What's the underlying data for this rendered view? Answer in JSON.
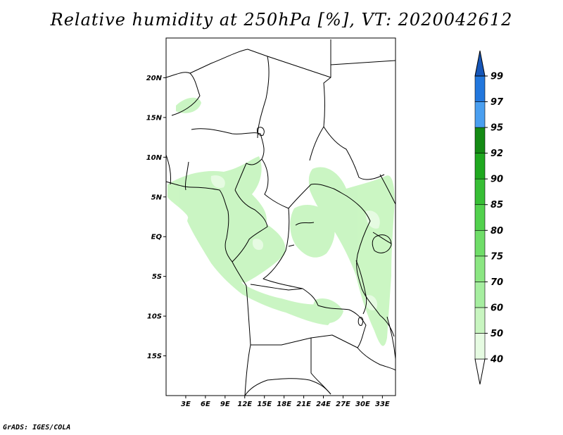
{
  "title": "Relative humidity at 250hPa [%], VT: 2020042612",
  "credit": "GrADS: IGES/COLA",
  "map": {
    "lon_range": [
      0,
      35
    ],
    "lat_range": [
      -20,
      25
    ],
    "lat_labels": [
      {
        "lat": 20,
        "text": "20N"
      },
      {
        "lat": 15,
        "text": "15N"
      },
      {
        "lat": 10,
        "text": "10N"
      },
      {
        "lat": 5,
        "text": "5N"
      },
      {
        "lat": 0,
        "text": "EQ"
      },
      {
        "lat": -5,
        "text": "5S"
      },
      {
        "lat": -10,
        "text": "10S"
      },
      {
        "lat": -15,
        "text": "15S"
      }
    ],
    "lon_labels": [
      {
        "lon": 3,
        "text": "3E"
      },
      {
        "lon": 6,
        "text": "6E"
      },
      {
        "lon": 9,
        "text": "9E"
      },
      {
        "lon": 12,
        "text": "12E"
      },
      {
        "lon": 15,
        "text": "15E"
      },
      {
        "lon": 18,
        "text": "18E"
      },
      {
        "lon": 21,
        "text": "21E"
      },
      {
        "lon": 24,
        "text": "24E"
      },
      {
        "lon": 27,
        "text": "27E"
      },
      {
        "lon": 30,
        "text": "30E"
      },
      {
        "lon": 33,
        "text": "33E"
      }
    ]
  },
  "colorbar": {
    "levels": [
      "40",
      "50",
      "60",
      "70",
      "75",
      "80",
      "85",
      "90",
      "92",
      "95",
      "97",
      "99"
    ],
    "colors": [
      "#ffffff",
      "#e6fbe2",
      "#c8f5c0",
      "#a6eea0",
      "#8be682",
      "#6fdd68",
      "#52d14d",
      "#37be35",
      "#1fa81f",
      "#148a14",
      "#4a9ff0",
      "#2277dd",
      "#1656b8"
    ]
  }
}
